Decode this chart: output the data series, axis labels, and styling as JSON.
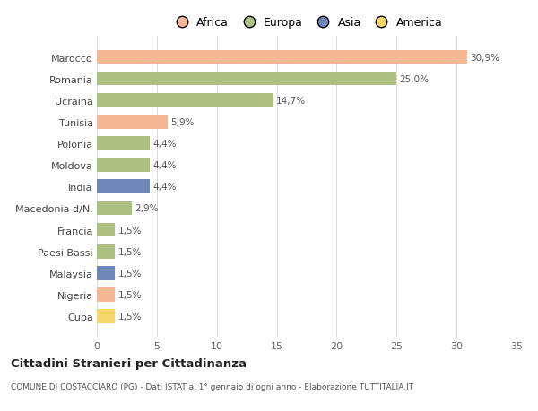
{
  "countries": [
    "Marocco",
    "Romania",
    "Ucraina",
    "Tunisia",
    "Polonia",
    "Moldova",
    "India",
    "Macedonia d/N.",
    "Francia",
    "Paesi Bassi",
    "Malaysia",
    "Nigeria",
    "Cuba"
  ],
  "values": [
    30.9,
    25.0,
    14.7,
    5.9,
    4.4,
    4.4,
    4.4,
    2.9,
    1.5,
    1.5,
    1.5,
    1.5,
    1.5
  ],
  "labels": [
    "30,9%",
    "25,0%",
    "14,7%",
    "5,9%",
    "4,4%",
    "4,4%",
    "4,4%",
    "2,9%",
    "1,5%",
    "1,5%",
    "1,5%",
    "1,5%",
    "1,5%"
  ],
  "colors": [
    "#F5B895",
    "#AEBF82",
    "#AEBF82",
    "#F5B895",
    "#AEBF82",
    "#AEBF82",
    "#6E86B8",
    "#AEBF82",
    "#AEBF82",
    "#AEBF82",
    "#6E86B8",
    "#F5B895",
    "#F5D76E"
  ],
  "legend_labels": [
    "Africa",
    "Europa",
    "Asia",
    "America"
  ],
  "legend_colors": [
    "#F5B895",
    "#AEBF82",
    "#6E86B8",
    "#F5D76E"
  ],
  "xlim": [
    0,
    35
  ],
  "xticks": [
    0,
    5,
    10,
    15,
    20,
    25,
    30,
    35
  ],
  "title": "Cittadini Stranieri per Cittadinanza",
  "subtitle": "COMUNE DI COSTACCIARO (PG) - Dati ISTAT al 1° gennaio di ogni anno - Elaborazione TUTTITALIA.IT",
  "bg_color": "#FFFFFF",
  "grid_color": "#DDDDDD",
  "bar_height": 0.65
}
